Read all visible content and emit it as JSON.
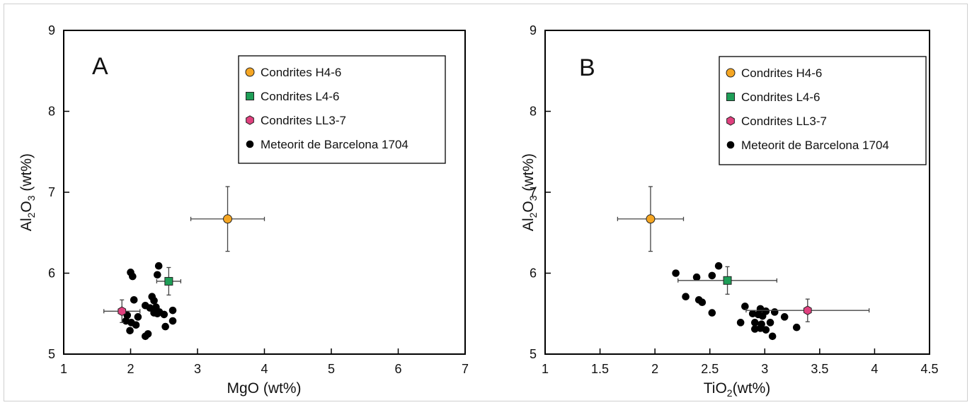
{
  "chart_data": [
    {
      "type": "scatter",
      "panel_label": "A",
      "xlabel": "MgO (wt%)",
      "ylabel": "Al2O3 (wt%)",
      "xlim": [
        1,
        7
      ],
      "ylim": [
        5,
        9
      ],
      "xticks": [
        1,
        2,
        3,
        4,
        5,
        6,
        7
      ],
      "yticks": [
        5,
        6,
        7,
        8,
        9
      ],
      "legend_position": "top-right",
      "grid": false,
      "series": [
        {
          "name": "Condrites H4-6",
          "marker": "circle",
          "color": "#f5a623",
          "points": [
            {
              "x": 3.45,
              "y": 6.67,
              "xerr": 0.55,
              "yerr": 0.4
            }
          ]
        },
        {
          "name": "Condrites L4-6",
          "marker": "square",
          "color": "#1e9e57",
          "points": [
            {
              "x": 2.57,
              "y": 5.9,
              "xerr": 0.18,
              "yerr": 0.17
            }
          ]
        },
        {
          "name": "Condrites LL3-7",
          "marker": "hexagon",
          "color": "#e0407e",
          "points": [
            {
              "x": 1.87,
              "y": 5.53,
              "xerr": 0.27,
              "yerr": 0.14
            }
          ]
        },
        {
          "name": "Meteorit de Barcelona 1704",
          "marker": "dot",
          "color": "#000000",
          "points": [
            {
              "x": 2.0,
              "y": 6.01
            },
            {
              "x": 2.03,
              "y": 5.96
            },
            {
              "x": 2.42,
              "y": 6.09
            },
            {
              "x": 2.4,
              "y": 5.98
            },
            {
              "x": 2.05,
              "y": 5.67
            },
            {
              "x": 2.32,
              "y": 5.71
            },
            {
              "x": 2.35,
              "y": 5.66
            },
            {
              "x": 2.22,
              "y": 5.6
            },
            {
              "x": 2.29,
              "y": 5.57
            },
            {
              "x": 2.38,
              "y": 5.58
            },
            {
              "x": 2.63,
              "y": 5.54
            },
            {
              "x": 2.43,
              "y": 5.52
            },
            {
              "x": 2.35,
              "y": 5.51
            },
            {
              "x": 2.5,
              "y": 5.49
            },
            {
              "x": 1.95,
              "y": 5.48
            },
            {
              "x": 2.11,
              "y": 5.46
            },
            {
              "x": 1.93,
              "y": 5.41
            },
            {
              "x": 2.01,
              "y": 5.39
            },
            {
              "x": 2.08,
              "y": 5.36
            },
            {
              "x": 2.63,
              "y": 5.41
            },
            {
              "x": 2.52,
              "y": 5.34
            },
            {
              "x": 1.99,
              "y": 5.29
            },
            {
              "x": 2.26,
              "y": 5.25
            },
            {
              "x": 2.22,
              "y": 5.22
            },
            {
              "x": 2.4,
              "y": 5.5
            }
          ]
        }
      ]
    },
    {
      "type": "scatter",
      "panel_label": "B",
      "xlabel": "TiO2(wt%)",
      "ylabel": "Al2O3 (wt%)",
      "xlim": [
        1,
        4.5
      ],
      "ylim": [
        5,
        9
      ],
      "xticks": [
        1,
        1.5,
        2,
        2.5,
        3,
        3.5,
        4,
        4.5
      ],
      "yticks": [
        5,
        6,
        7,
        8,
        9
      ],
      "legend_position": "top-right",
      "grid": false,
      "series": [
        {
          "name": "Condrites H4-6",
          "marker": "circle",
          "color": "#f5a623",
          "points": [
            {
              "x": 1.96,
              "y": 6.67,
              "xerr": 0.3,
              "yerr": 0.4
            }
          ]
        },
        {
          "name": "Condrites L4-6",
          "marker": "square",
          "color": "#1e9e57",
          "points": [
            {
              "x": 2.66,
              "y": 5.91,
              "xerr": 0.45,
              "yerr": 0.17
            }
          ]
        },
        {
          "name": "Condrites LL3-7",
          "marker": "hexagon",
          "color": "#e0407e",
          "points": [
            {
              "x": 3.39,
              "y": 5.54,
              "xerr": 0.56,
              "yerr": 0.14
            }
          ]
        },
        {
          "name": "Meteorit de Barcelona 1704",
          "marker": "dot",
          "color": "#000000",
          "points": [
            {
              "x": 2.19,
              "y": 6.0
            },
            {
              "x": 2.58,
              "y": 6.09
            },
            {
              "x": 2.38,
              "y": 5.95
            },
            {
              "x": 2.52,
              "y": 5.97
            },
            {
              "x": 2.28,
              "y": 5.71
            },
            {
              "x": 2.4,
              "y": 5.67
            },
            {
              "x": 2.43,
              "y": 5.64
            },
            {
              "x": 2.52,
              "y": 5.51
            },
            {
              "x": 2.82,
              "y": 5.59
            },
            {
              "x": 2.89,
              "y": 5.5
            },
            {
              "x": 2.96,
              "y": 5.56
            },
            {
              "x": 3.01,
              "y": 5.53
            },
            {
              "x": 3.09,
              "y": 5.52
            },
            {
              "x": 2.94,
              "y": 5.49
            },
            {
              "x": 2.98,
              "y": 5.47
            },
            {
              "x": 3.18,
              "y": 5.46
            },
            {
              "x": 2.78,
              "y": 5.39
            },
            {
              "x": 2.91,
              "y": 5.39
            },
            {
              "x": 2.97,
              "y": 5.37
            },
            {
              "x": 3.05,
              "y": 5.39
            },
            {
              "x": 2.91,
              "y": 5.31
            },
            {
              "x": 2.96,
              "y": 5.32
            },
            {
              "x": 3.01,
              "y": 5.3
            },
            {
              "x": 3.29,
              "y": 5.33
            },
            {
              "x": 3.07,
              "y": 5.22
            }
          ]
        }
      ]
    }
  ]
}
